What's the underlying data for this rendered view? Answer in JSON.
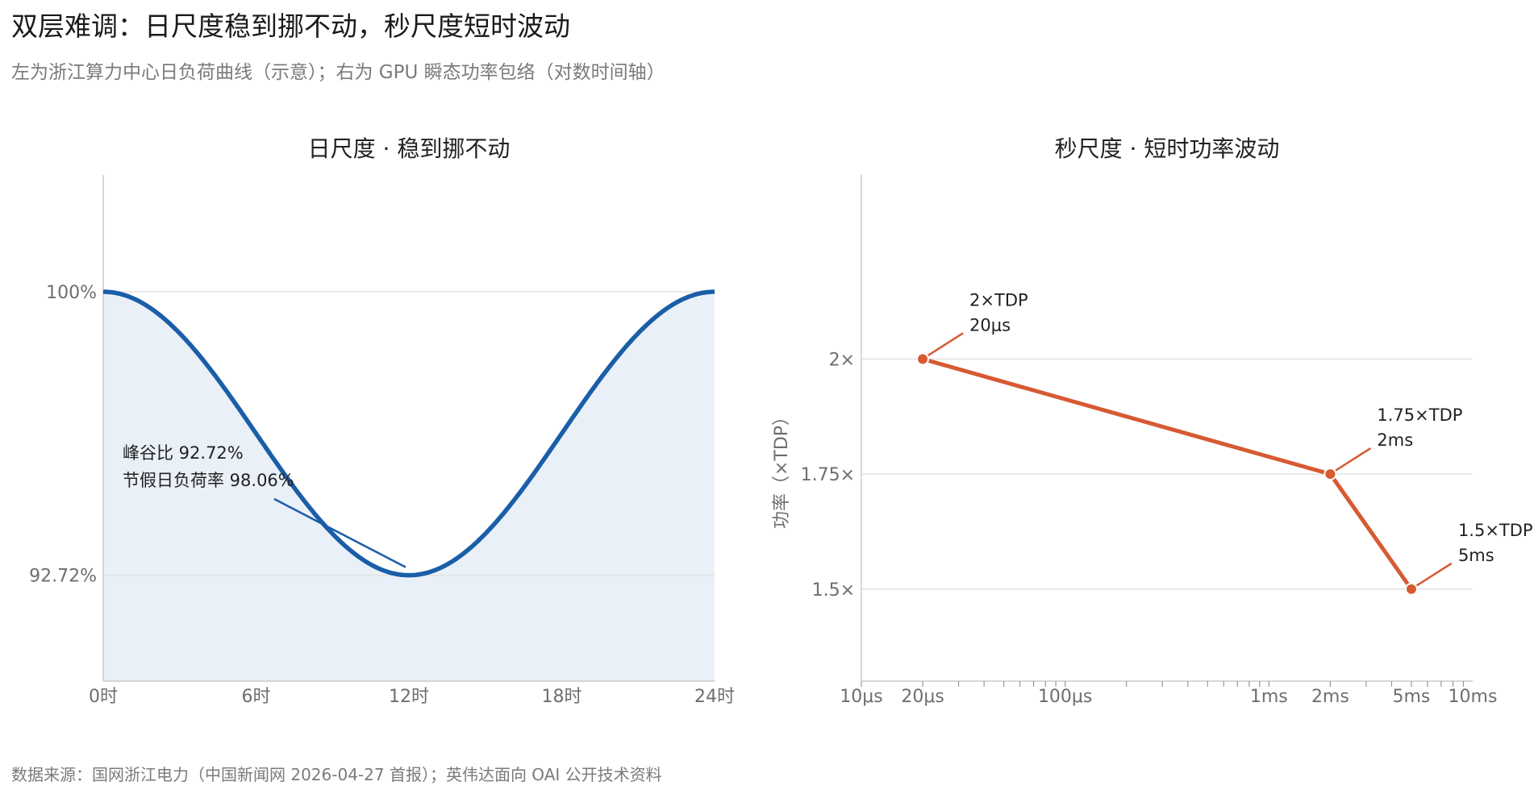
{
  "header": {
    "title": "双层难调：日尺度稳到挪不动，秒尺度短时波动",
    "subtitle": "左为浙江算力中心日负荷曲线（示意）；右为 GPU 瞬态功率包络（对数时间轴）"
  },
  "footer": {
    "source": "数据来源：国网浙江电力（中国新闻网 2026-04-27 首报）；英伟达面向 OAI 公开技术资料"
  },
  "colors": {
    "daily_line": "#1a5ea8",
    "daily_fill": "#eaf0f8",
    "power_line": "#d65a33",
    "grid": "#e3e3e3",
    "axis": "#cccccc"
  },
  "chart_data": [
    {
      "type": "area",
      "title": "日尺度 · 稳到挪不动",
      "x_ticks": [
        "0时",
        "6时",
        "12时",
        "18时",
        "24时"
      ],
      "xlim": [
        0,
        24
      ],
      "y_ticks": [
        "100%",
        "92.72%"
      ],
      "y_tick_values": [
        100,
        92.72
      ],
      "ylim": [
        90,
        103
      ],
      "curve": "cosine",
      "x": [
        0,
        3,
        6,
        9,
        12,
        15,
        18,
        21,
        24
      ],
      "y": [
        100,
        98.93,
        96.36,
        93.79,
        92.72,
        93.79,
        96.36,
        98.93,
        100
      ],
      "annotation": {
        "lines": [
          "峰谷比 92.72%",
          "节假日负荷率 98.06%"
        ],
        "points_to": {
          "x": 12,
          "y": 92.72
        }
      }
    },
    {
      "type": "line",
      "title": "秒尺度 · 短时功率波动",
      "x_scale": "log",
      "x_ticks": [
        "10μs",
        "20μs",
        "100μs",
        "1ms",
        "2ms",
        "5ms",
        "10ms"
      ],
      "x_tick_values_us": [
        10,
        20,
        100,
        1000,
        2000,
        5000,
        10000
      ],
      "xlim_us": [
        10,
        10000
      ],
      "ylabel": "功率（×TDP）",
      "y_ticks": [
        "2×",
        "1.75×",
        "1.5×"
      ],
      "y_tick_values": [
        2,
        1.75,
        1.5
      ],
      "ylim": [
        1.3,
        2.4
      ],
      "points": [
        {
          "x_us": 20,
          "y": 2,
          "label_power": "2×TDP",
          "label_time": "20μs"
        },
        {
          "x_us": 2000,
          "y": 1.75,
          "label_power": "1.75×TDP",
          "label_time": "2ms"
        },
        {
          "x_us": 5000,
          "y": 1.5,
          "label_power": "1.5×TDP",
          "label_time": "5ms"
        }
      ]
    }
  ]
}
